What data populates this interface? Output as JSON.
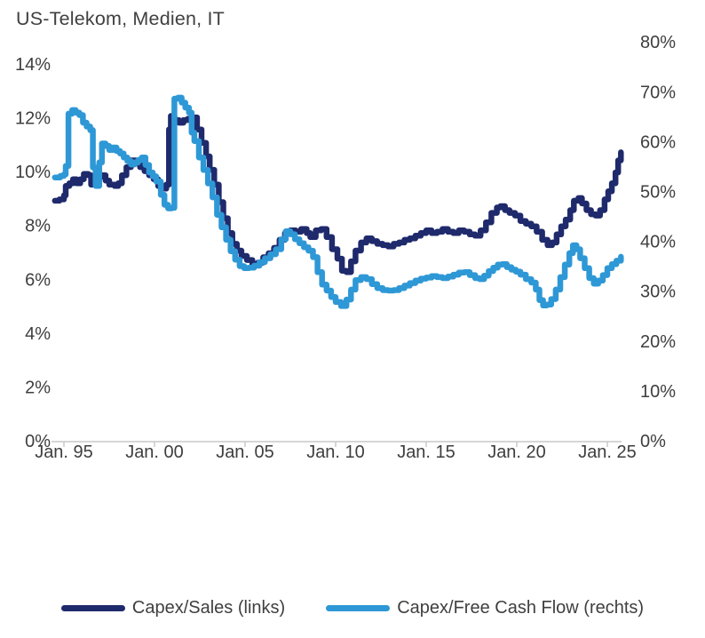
{
  "title": "US-Telekom, Medien, IT",
  "colors": {
    "background": "#ffffff",
    "axis_text": "#3e3e3e",
    "axis_line": "#c9c9c9",
    "navy": "#1f2a6c",
    "light_blue": "#2e98d6"
  },
  "legend": {
    "items": [
      {
        "label": "Capex/Sales (links)",
        "color": "#1f2a6c"
      },
      {
        "label": "Capex/Free Cash Flow (rechts)",
        "color": "#2e98d6"
      }
    ]
  },
  "chart_data": {
    "type": "line",
    "title": "US-Telekom, Medien, IT",
    "grid": "off",
    "legend_position": "bottom",
    "line_style": "stepped-thick",
    "x_axis": {
      "tick_labels": [
        "Jan. 95",
        "Jan. 00",
        "Jan. 05",
        "Jan. 10",
        "Jan. 15",
        "Jan. 20",
        "Jan. 25"
      ],
      "tick_years": [
        1995,
        2000,
        2005,
        2010,
        2015,
        2020,
        2025
      ],
      "range_years": [
        1994.2,
        2026.3
      ]
    },
    "y_axis_left": {
      "tick_labels": [
        "0%",
        "2%",
        "4%",
        "6%",
        "8%",
        "10%",
        "12%",
        "14%"
      ],
      "tick_values": [
        0,
        2,
        4,
        6,
        8,
        10,
        12,
        14
      ],
      "range": [
        0,
        14
      ]
    },
    "y_axis_right": {
      "tick_labels": [
        "0%",
        "10%",
        "20%",
        "30%",
        "40%",
        "50%",
        "60%",
        "70%",
        "80%"
      ],
      "tick_values": [
        0,
        10,
        20,
        30,
        40,
        50,
        60,
        70,
        80
      ],
      "range": [
        0,
        80
      ]
    },
    "series": [
      {
        "name": "Capex/Sales (links)",
        "axis": "left",
        "color": "#1f2a6c",
        "unit": "%",
        "points": [
          [
            1994.5,
            8.95
          ],
          [
            1994.75,
            9.0
          ],
          [
            1995.0,
            9.15
          ],
          [
            1995.1,
            9.5
          ],
          [
            1995.3,
            9.6
          ],
          [
            1995.5,
            9.75
          ],
          [
            1995.7,
            9.6
          ],
          [
            1995.9,
            9.75
          ],
          [
            1996.1,
            9.95
          ],
          [
            1996.35,
            9.9
          ],
          [
            1996.5,
            9.55
          ],
          [
            1996.7,
            9.75
          ],
          [
            1996.9,
            9.85
          ],
          [
            1997.1,
            9.9
          ],
          [
            1997.3,
            9.7
          ],
          [
            1997.5,
            9.55
          ],
          [
            1997.8,
            9.5
          ],
          [
            1998.0,
            9.6
          ],
          [
            1998.2,
            9.9
          ],
          [
            1998.45,
            10.2
          ],
          [
            1998.7,
            10.45
          ],
          [
            1999.0,
            10.4
          ],
          [
            1999.2,
            10.2
          ],
          [
            1999.45,
            10.05
          ],
          [
            1999.7,
            9.9
          ],
          [
            1999.95,
            9.75
          ],
          [
            2000.2,
            9.5
          ],
          [
            2000.45,
            9.4
          ],
          [
            2000.65,
            9.55
          ],
          [
            2000.8,
            11.6
          ],
          [
            2000.9,
            12.1
          ],
          [
            2001.1,
            11.95
          ],
          [
            2001.35,
            11.85
          ],
          [
            2001.6,
            11.95
          ],
          [
            2001.85,
            12.0
          ],
          [
            2002.1,
            12.05
          ],
          [
            2002.35,
            11.6
          ],
          [
            2002.6,
            11.1
          ],
          [
            2002.85,
            10.6
          ],
          [
            2003.05,
            10.1
          ],
          [
            2003.3,
            9.55
          ],
          [
            2003.55,
            8.9
          ],
          [
            2003.8,
            8.3
          ],
          [
            2004.05,
            7.75
          ],
          [
            2004.3,
            7.35
          ],
          [
            2004.55,
            7.1
          ],
          [
            2004.8,
            6.9
          ],
          [
            2005.1,
            6.75
          ],
          [
            2005.4,
            6.6
          ],
          [
            2005.7,
            6.65
          ],
          [
            2006.0,
            6.85
          ],
          [
            2006.3,
            7.0
          ],
          [
            2006.6,
            7.2
          ],
          [
            2006.9,
            7.5
          ],
          [
            2007.2,
            7.75
          ],
          [
            2007.5,
            7.85
          ],
          [
            2007.8,
            7.8
          ],
          [
            2008.1,
            7.9
          ],
          [
            2008.4,
            7.75
          ],
          [
            2008.6,
            7.6
          ],
          [
            2008.9,
            7.85
          ],
          [
            2009.2,
            7.9
          ],
          [
            2009.5,
            7.6
          ],
          [
            2009.8,
            7.15
          ],
          [
            2010.1,
            6.8
          ],
          [
            2010.35,
            6.35
          ],
          [
            2010.6,
            6.3
          ],
          [
            2010.85,
            6.7
          ],
          [
            2011.1,
            7.1
          ],
          [
            2011.4,
            7.4
          ],
          [
            2011.7,
            7.55
          ],
          [
            2012.0,
            7.45
          ],
          [
            2012.3,
            7.35
          ],
          [
            2012.6,
            7.3
          ],
          [
            2012.9,
            7.25
          ],
          [
            2013.2,
            7.35
          ],
          [
            2013.5,
            7.4
          ],
          [
            2013.8,
            7.5
          ],
          [
            2014.1,
            7.55
          ],
          [
            2014.4,
            7.65
          ],
          [
            2014.7,
            7.75
          ],
          [
            2015.0,
            7.85
          ],
          [
            2015.3,
            7.75
          ],
          [
            2015.6,
            7.8
          ],
          [
            2015.9,
            7.9
          ],
          [
            2016.2,
            7.8
          ],
          [
            2016.5,
            7.75
          ],
          [
            2016.8,
            7.85
          ],
          [
            2017.1,
            7.8
          ],
          [
            2017.4,
            7.7
          ],
          [
            2017.7,
            7.65
          ],
          [
            2018.0,
            7.85
          ],
          [
            2018.3,
            8.15
          ],
          [
            2018.6,
            8.5
          ],
          [
            2018.9,
            8.7
          ],
          [
            2019.1,
            8.75
          ],
          [
            2019.35,
            8.6
          ],
          [
            2019.6,
            8.5
          ],
          [
            2019.9,
            8.4
          ],
          [
            2020.2,
            8.2
          ],
          [
            2020.5,
            8.1
          ],
          [
            2020.8,
            8.0
          ],
          [
            2021.1,
            7.8
          ],
          [
            2021.4,
            7.5
          ],
          [
            2021.7,
            7.3
          ],
          [
            2021.95,
            7.4
          ],
          [
            2022.2,
            7.7
          ],
          [
            2022.45,
            8.0
          ],
          [
            2022.7,
            8.25
          ],
          [
            2022.95,
            8.6
          ],
          [
            2023.15,
            8.95
          ],
          [
            2023.4,
            9.05
          ],
          [
            2023.6,
            8.85
          ],
          [
            2023.85,
            8.6
          ],
          [
            2024.1,
            8.45
          ],
          [
            2024.35,
            8.4
          ],
          [
            2024.6,
            8.6
          ],
          [
            2024.85,
            9.0
          ],
          [
            2025.05,
            9.3
          ],
          [
            2025.25,
            9.6
          ],
          [
            2025.45,
            10.0
          ],
          [
            2025.6,
            10.45
          ],
          [
            2025.75,
            10.75
          ]
        ]
      },
      {
        "name": "Capex/Free Cash Flow (rechts)",
        "axis": "right",
        "color": "#2e98d6",
        "unit": "%",
        "points": [
          [
            1994.5,
            53.0
          ],
          [
            1994.8,
            53.3
          ],
          [
            1995.0,
            53.6
          ],
          [
            1995.1,
            55.3
          ],
          [
            1995.25,
            65.8
          ],
          [
            1995.45,
            66.5
          ],
          [
            1995.65,
            66.0
          ],
          [
            1995.85,
            65.5
          ],
          [
            1996.05,
            64.0
          ],
          [
            1996.25,
            63.2
          ],
          [
            1996.45,
            62.5
          ],
          [
            1996.6,
            55.0
          ],
          [
            1996.75,
            51.3
          ],
          [
            1996.95,
            56.0
          ],
          [
            1997.1,
            59.8
          ],
          [
            1997.3,
            59.3
          ],
          [
            1997.5,
            58.5
          ],
          [
            1997.7,
            59.0
          ],
          [
            1997.9,
            58.3
          ],
          [
            1998.1,
            57.8
          ],
          [
            1998.3,
            57.0
          ],
          [
            1998.5,
            56.3
          ],
          [
            1998.7,
            55.6
          ],
          [
            1998.9,
            56.0
          ],
          [
            1999.1,
            56.5
          ],
          [
            1999.3,
            57.0
          ],
          [
            1999.5,
            55.5
          ],
          [
            1999.7,
            54.0
          ],
          [
            1999.9,
            53.2
          ],
          [
            2000.1,
            52.2
          ],
          [
            2000.35,
            49.5
          ],
          [
            2000.55,
            47.5
          ],
          [
            2000.75,
            46.8
          ],
          [
            2000.95,
            46.9
          ],
          [
            2001.1,
            68.8
          ],
          [
            2001.3,
            69.0
          ],
          [
            2001.5,
            68.0
          ],
          [
            2001.7,
            67.0
          ],
          [
            2001.9,
            66.0
          ],
          [
            2002.05,
            62.0
          ],
          [
            2002.2,
            60.3
          ],
          [
            2002.45,
            57.0
          ],
          [
            2002.7,
            54.5
          ],
          [
            2002.95,
            51.8
          ],
          [
            2003.2,
            49.0
          ],
          [
            2003.45,
            45.5
          ],
          [
            2003.7,
            43.0
          ],
          [
            2003.95,
            40.5
          ],
          [
            2004.2,
            38.2
          ],
          [
            2004.45,
            36.5
          ],
          [
            2004.7,
            35.2
          ],
          [
            2004.95,
            34.8
          ],
          [
            2005.2,
            34.9
          ],
          [
            2005.5,
            35.3
          ],
          [
            2005.8,
            36.0
          ],
          [
            2006.1,
            36.8
          ],
          [
            2006.4,
            37.6
          ],
          [
            2006.7,
            38.6
          ],
          [
            2007.0,
            40.6
          ],
          [
            2007.25,
            42.2
          ],
          [
            2007.5,
            41.6
          ],
          [
            2007.75,
            40.6
          ],
          [
            2008.0,
            39.8
          ],
          [
            2008.25,
            39.0
          ],
          [
            2008.5,
            38.3
          ],
          [
            2008.75,
            37.0
          ],
          [
            2009.0,
            34.0
          ],
          [
            2009.25,
            31.5
          ],
          [
            2009.5,
            30.3
          ],
          [
            2009.75,
            29.0
          ],
          [
            2010.0,
            28.0
          ],
          [
            2010.3,
            27.2
          ],
          [
            2010.6,
            28.5
          ],
          [
            2010.85,
            30.5
          ],
          [
            2011.1,
            32.4
          ],
          [
            2011.4,
            33.0
          ],
          [
            2011.7,
            32.6
          ],
          [
            2012.0,
            31.6
          ],
          [
            2012.3,
            30.8
          ],
          [
            2012.6,
            30.4
          ],
          [
            2012.9,
            30.3
          ],
          [
            2013.2,
            30.4
          ],
          [
            2013.5,
            30.8
          ],
          [
            2013.8,
            31.3
          ],
          [
            2014.1,
            31.8
          ],
          [
            2014.4,
            32.3
          ],
          [
            2014.7,
            32.7
          ],
          [
            2015.0,
            32.9
          ],
          [
            2015.3,
            33.2
          ],
          [
            2015.6,
            33.0
          ],
          [
            2015.9,
            32.8
          ],
          [
            2016.2,
            33.1
          ],
          [
            2016.5,
            33.5
          ],
          [
            2016.8,
            33.9
          ],
          [
            2017.1,
            34.0
          ],
          [
            2017.4,
            33.4
          ],
          [
            2017.7,
            32.8
          ],
          [
            2017.95,
            32.6
          ],
          [
            2018.2,
            33.3
          ],
          [
            2018.45,
            34.2
          ],
          [
            2018.7,
            34.9
          ],
          [
            2018.95,
            35.5
          ],
          [
            2019.2,
            35.6
          ],
          [
            2019.45,
            35.0
          ],
          [
            2019.7,
            34.5
          ],
          [
            2019.95,
            34.1
          ],
          [
            2020.2,
            33.5
          ],
          [
            2020.5,
            32.6
          ],
          [
            2020.8,
            31.9
          ],
          [
            2021.05,
            30.5
          ],
          [
            2021.25,
            28.4
          ],
          [
            2021.45,
            27.3
          ],
          [
            2021.65,
            27.5
          ],
          [
            2021.9,
            28.6
          ],
          [
            2022.15,
            30.5
          ],
          [
            2022.4,
            33.0
          ],
          [
            2022.65,
            35.5
          ],
          [
            2022.9,
            37.8
          ],
          [
            2023.1,
            39.4
          ],
          [
            2023.3,
            38.6
          ],
          [
            2023.5,
            36.8
          ],
          [
            2023.75,
            34.8
          ],
          [
            2024.0,
            32.8
          ],
          [
            2024.25,
            31.7
          ],
          [
            2024.5,
            32.3
          ],
          [
            2024.75,
            33.4
          ],
          [
            2025.0,
            34.8
          ],
          [
            2025.25,
            35.6
          ],
          [
            2025.5,
            36.3
          ],
          [
            2025.75,
            37.1
          ]
        ]
      }
    ]
  }
}
